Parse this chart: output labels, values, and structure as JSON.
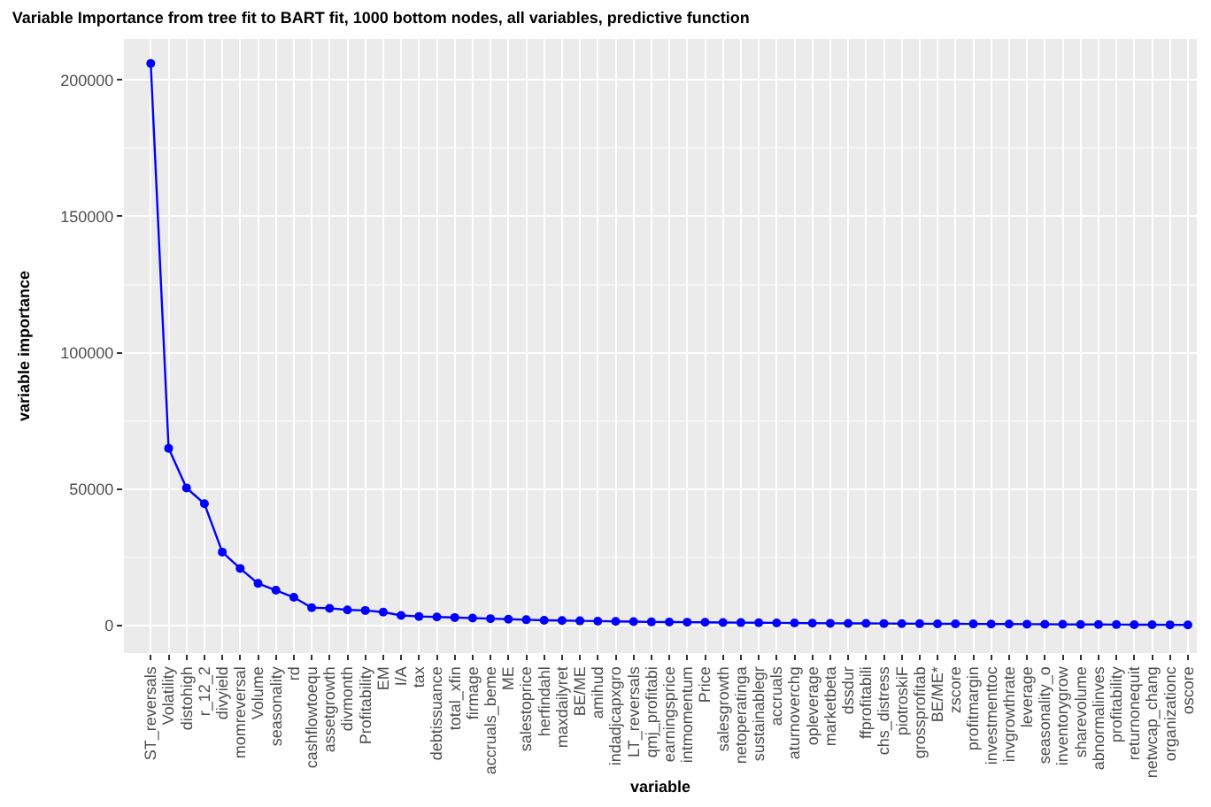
{
  "chart_data": {
    "type": "line",
    "title": "Variable Importance from tree fit to BART fit, 1000 bottom nodes, all variables, predictive function",
    "xlabel": "variable",
    "ylabel": "variable importance",
    "categories": [
      "ST_reversals",
      "Volatility",
      "distohigh",
      "r_12_2",
      "divyield",
      "momreversal",
      "Volume",
      "seasonality",
      "rd",
      "cashflowtoequ",
      "assetgrowth",
      "divmonth",
      "Profitability",
      "EM",
      "I/A",
      "tax",
      "debtissuance",
      "total_xfin",
      "firmage",
      "accruals_beme",
      "ME",
      "salestoprice",
      "herfindahl",
      "maxdailyret",
      "BE/ME",
      "amihud",
      "indadjcapxgro",
      "LT_reversals",
      "qmj_profitabi",
      "earningsprice",
      "intmomentum",
      "Price",
      "salesgrowth",
      "netoperatinga",
      "sustainablegr",
      "accruals",
      "aturnoverchg",
      "opleverage",
      "marketbeta",
      "dssdur",
      "ffprofitabili",
      "chs_distress",
      "piotroskiF",
      "grossprofitab",
      "BE/ME*",
      "zscore",
      "profitmargin",
      "investmenttoc",
      "invgrowthrate",
      "leverage",
      "seasonality_o",
      "inventorygrow",
      "sharevolume",
      "abnormalinves",
      "profitability",
      "returnonequit",
      "netwcap_chang",
      "organizationc",
      "oscore"
    ],
    "series": [
      {
        "color": "#0000ff",
        "values": [
          206000,
          65000,
          50500,
          44700,
          27000,
          21000,
          15500,
          13000,
          10400,
          6600,
          6400,
          5800,
          5600,
          5000,
          3800,
          3400,
          3200,
          3000,
          2800,
          2600,
          2400,
          2200,
          2000,
          1900,
          1800,
          1700,
          1600,
          1500,
          1400,
          1350,
          1300,
          1250,
          1200,
          1150,
          1100,
          1050,
          1000,
          950,
          900,
          870,
          840,
          810,
          780,
          750,
          720,
          690,
          660,
          630,
          600,
          570,
          540,
          510,
          480,
          450,
          420,
          390,
          360,
          330,
          300
        ]
      }
    ],
    "ylim": [
      -10000,
      215000
    ],
    "yticks": [
      0,
      50000,
      100000,
      150000,
      200000
    ],
    "grid": true,
    "marker": "circle",
    "line_style": "solid"
  }
}
